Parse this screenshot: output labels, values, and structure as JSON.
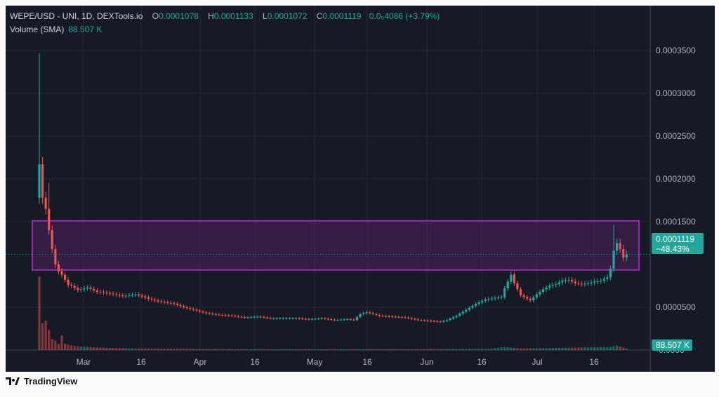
{
  "header": {
    "symbol": "WEPE/USD - UNI, 1D, DEXTools.io",
    "o_label": "O",
    "o_value": "0.0001078",
    "h_label": "H",
    "h_value": "0.0001133",
    "l_label": "L",
    "l_value": "0.0001072",
    "c_label": "C",
    "c_value": "0.0001119",
    "change": "0.0₅4086 (+3.79%)",
    "volume_label": "Volume (SMA)",
    "volume_value": "88.507 K"
  },
  "footer": {
    "brand": "TradingView"
  },
  "colors": {
    "up": "#26a69a",
    "down": "#ef5350",
    "zone": "#9c27b0",
    "background": "#161a25"
  },
  "chart_data": {
    "type": "candlestick",
    "x_ticks": [
      "Mar",
      "16",
      "Apr",
      "16",
      "May",
      "16",
      "Jun",
      "16",
      "Jul",
      "16"
    ],
    "y_ticks": [
      "0.0003500",
      "0.0003000",
      "0.0002500",
      "0.0002000",
      "0.0001500",
      "0.0000500",
      "-0.0000"
    ],
    "ylim": [
      0,
      0.00037
    ],
    "last_price": {
      "value": 0.0001119,
      "label": "0.0001119",
      "change": "−48.43%"
    },
    "volume_label": "88.507 K",
    "zone": {
      "top": 0.000151,
      "bottom": 9.35e-05
    },
    "price_key_points": [
      [
        0,
        0.000217
      ],
      [
        1,
        0.000178
      ],
      [
        2,
        0.000165
      ],
      [
        3,
        0.00014
      ],
      [
        4,
        0.000118
      ],
      [
        5,
        0.0001
      ],
      [
        6,
        9.2e-05
      ],
      [
        7,
        8.8e-05
      ],
      [
        8,
        8.2e-05
      ],
      [
        9,
        7.6e-05
      ],
      [
        10,
        7.5e-05
      ],
      [
        12,
        7e-05
      ],
      [
        15,
        7.3e-05
      ],
      [
        18,
        6.8e-05
      ],
      [
        22,
        6.6e-05
      ],
      [
        26,
        6.3e-05
      ],
      [
        30,
        6.5e-05
      ],
      [
        34,
        6e-05
      ],
      [
        37,
        5.7e-05
      ],
      [
        42,
        5.4e-05
      ],
      [
        45,
        5e-05
      ],
      [
        48,
        4.7e-05
      ],
      [
        52,
        4.3e-05
      ],
      [
        56,
        4.1e-05
      ],
      [
        60,
        4e-05
      ],
      [
        64,
        3.8e-05
      ],
      [
        68,
        3.9e-05
      ],
      [
        72,
        3.7e-05
      ],
      [
        76,
        3.7e-05
      ],
      [
        80,
        3.7e-05
      ],
      [
        84,
        3.6e-05
      ],
      [
        88,
        3.7e-05
      ],
      [
        92,
        3.5e-05
      ],
      [
        96,
        3.6e-05
      ],
      [
        98,
        3.5e-05
      ],
      [
        100,
        4.2e-05
      ],
      [
        102,
        4.4e-05
      ],
      [
        104,
        4.2e-05
      ],
      [
        106,
        4e-05
      ],
      [
        110,
        3.9e-05
      ],
      [
        114,
        3.8e-05
      ],
      [
        118,
        3.5e-05
      ],
      [
        122,
        3.4e-05
      ],
      [
        125,
        3.3e-05
      ],
      [
        127,
        3.5e-05
      ],
      [
        130,
        4e-05
      ],
      [
        133,
        4.7e-05
      ],
      [
        136,
        5.4e-05
      ],
      [
        139,
        5.9e-05
      ],
      [
        142,
        6.1e-05
      ],
      [
        144,
        6.2e-05
      ],
      [
        145,
        7.2e-05
      ],
      [
        146,
        8e-05
      ],
      [
        147,
        8.8e-05
      ],
      [
        148,
        7.8e-05
      ],
      [
        149,
        7.1e-05
      ],
      [
        150,
        6.4e-05
      ],
      [
        152,
        6e-05
      ],
      [
        153,
        5.8e-05
      ],
      [
        155,
        6.5e-05
      ],
      [
        157,
        7.1e-05
      ],
      [
        159,
        7.5e-05
      ],
      [
        161,
        7.7e-05
      ],
      [
        163,
        8.1e-05
      ],
      [
        165,
        8.2e-05
      ],
      [
        167,
        7.8e-05
      ],
      [
        169,
        7.7e-05
      ],
      [
        171,
        7.8e-05
      ],
      [
        173,
        8e-05
      ],
      [
        175,
        8.1e-05
      ],
      [
        177,
        8.5e-05
      ],
      [
        178,
        9.5e-05
      ],
      [
        179,
        0.000116
      ],
      [
        180,
        0.000125
      ],
      [
        181,
        0.000118
      ],
      [
        182,
        0.000108
      ],
      [
        183,
        0.000112
      ]
    ],
    "spikes": {
      "0": 0.000347,
      "3": 0.000195,
      "179": 0.000146
    },
    "volume_key_points": [
      [
        0,
        0.95
      ],
      [
        1,
        0.35
      ],
      [
        2,
        0.38
      ],
      [
        3,
        0.26
      ],
      [
        4,
        0.14
      ],
      [
        5,
        0.12
      ],
      [
        6,
        0.08
      ],
      [
        7,
        0.19
      ],
      [
        8,
        0.08
      ],
      [
        10,
        0.06
      ],
      [
        14,
        0.04
      ],
      [
        20,
        0.03
      ],
      [
        30,
        0.02
      ],
      [
        60,
        0.01
      ],
      [
        120,
        0.01
      ],
      [
        140,
        0.015
      ],
      [
        145,
        0.04
      ],
      [
        150,
        0.02
      ],
      [
        165,
        0.03
      ],
      [
        178,
        0.04
      ],
      [
        180,
        0.06
      ],
      [
        183,
        0.02
      ]
    ]
  }
}
